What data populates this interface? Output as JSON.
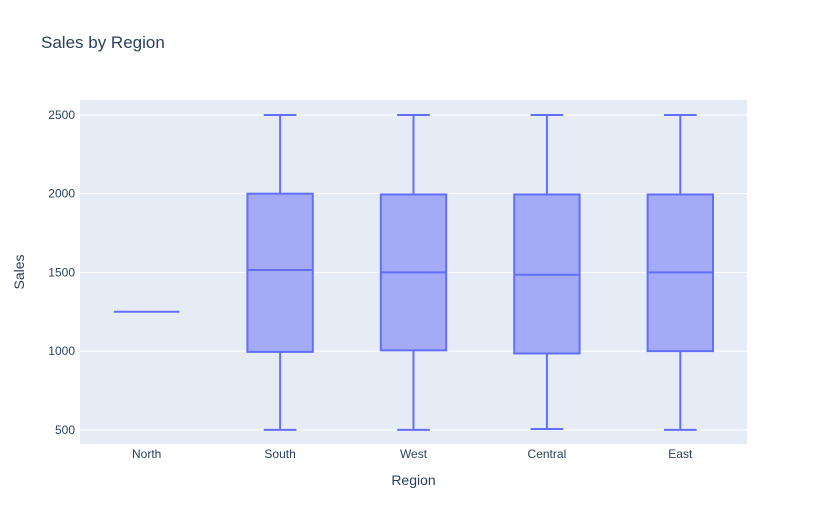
{
  "chart_data": {
    "type": "box",
    "title": "Sales by Region",
    "xlabel": "Region",
    "ylabel": "Sales",
    "ylim": [
      410,
      2595
    ],
    "yticks": [
      500,
      1000,
      1500,
      2000,
      2500
    ],
    "ytick_labels": [
      "500",
      "1000",
      "1500",
      "2000",
      "2500"
    ],
    "grid": true,
    "legend": "none",
    "colors": {
      "box_line": "#636efa",
      "box_fill": "#a3abf7",
      "plot_bg": "#e5ecf6",
      "grid": "#ffffff"
    },
    "categories": [
      "North",
      "South",
      "West",
      "Central",
      "East"
    ],
    "boxes": [
      {
        "category": "North",
        "min": 1250,
        "q1": 1250,
        "median": 1250,
        "q3": 1250,
        "max": 1250
      },
      {
        "category": "South",
        "min": 500,
        "q1": 995,
        "median": 1515,
        "q3": 2000,
        "max": 2500
      },
      {
        "category": "West",
        "min": 500,
        "q1": 1005,
        "median": 1500,
        "q3": 1995,
        "max": 2500
      },
      {
        "category": "Central",
        "min": 505,
        "q1": 985,
        "median": 1485,
        "q3": 1995,
        "max": 2500
      },
      {
        "category": "East",
        "min": 500,
        "q1": 1000,
        "median": 1500,
        "q3": 1995,
        "max": 2500
      }
    ]
  }
}
